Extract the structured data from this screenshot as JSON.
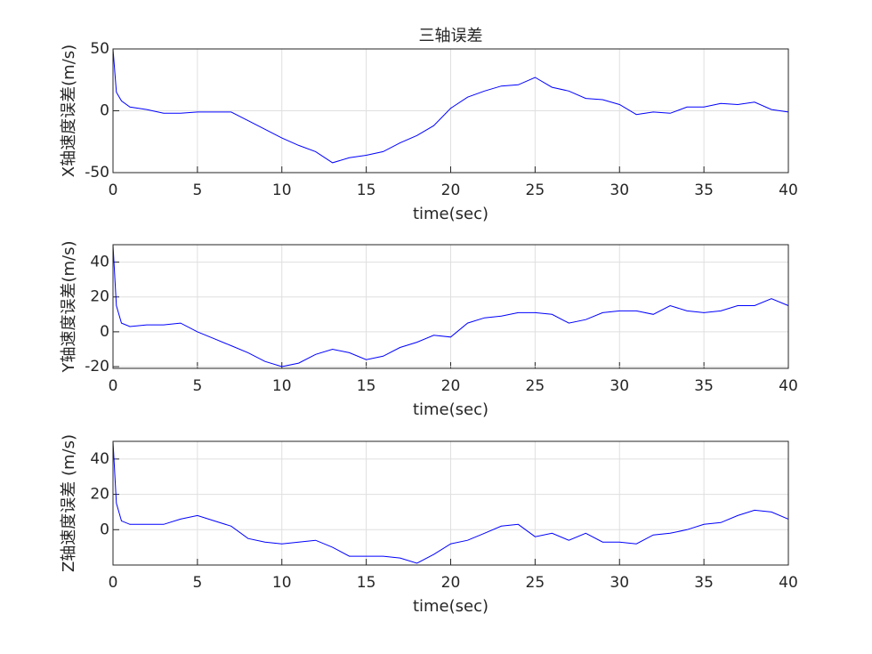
{
  "chart_data": [
    {
      "type": "line",
      "title": "三轴误差",
      "xlabel": "time(sec)",
      "ylabel": "X轴速度误差(m/s)",
      "x": [
        0,
        0.2,
        0.5,
        1,
        2,
        3,
        4,
        5,
        6,
        7,
        8,
        9,
        10,
        11,
        12,
        13,
        14,
        15,
        16,
        17,
        18,
        19,
        20,
        21,
        22,
        23,
        24,
        25,
        26,
        27,
        28,
        29,
        30,
        31,
        32,
        33,
        34,
        35,
        36,
        37,
        38,
        39,
        40
      ],
      "values": [
        50,
        15,
        8,
        3,
        1,
        -2,
        -2,
        -1,
        -1,
        -1,
        -8,
        -15,
        -22,
        -28,
        -33,
        -42,
        -38,
        -36,
        -33,
        -26,
        -20,
        -12,
        2,
        11,
        16,
        20,
        21,
        27,
        19,
        16,
        10,
        9,
        5,
        -3,
        -1,
        -2,
        3,
        3,
        6,
        5,
        7,
        1,
        -1
      ],
      "color": "#0000ff",
      "xlim": [
        0,
        40
      ],
      "xticks": [
        0,
        5,
        10,
        15,
        20,
        25,
        30,
        35,
        40
      ],
      "ylim": [
        -50,
        50
      ],
      "yticks": [
        -50,
        0,
        50
      ],
      "grid": true
    },
    {
      "type": "line",
      "xlabel": "time(sec)",
      "ylabel": "Y轴速度误差(m/s)",
      "x": [
        0,
        0.2,
        0.5,
        1,
        2,
        3,
        4,
        5,
        6,
        7,
        8,
        9,
        10,
        11,
        12,
        13,
        14,
        15,
        16,
        17,
        18,
        19,
        20,
        21,
        22,
        23,
        24,
        25,
        26,
        27,
        28,
        29,
        30,
        31,
        32,
        33,
        34,
        35,
        36,
        37,
        38,
        39,
        40
      ],
      "values": [
        50,
        15,
        5,
        3,
        4,
        4,
        5,
        0,
        -4,
        -8,
        -12,
        -17,
        -20,
        -18,
        -13,
        -10,
        -12,
        -16,
        -14,
        -9,
        -6,
        -2,
        -3,
        5,
        8,
        9,
        11,
        11,
        10,
        5,
        7,
        11,
        12,
        12,
        10,
        15,
        12,
        11,
        12,
        15,
        15,
        19,
        15
      ],
      "color": "#0000ff",
      "xlim": [
        0,
        40
      ],
      "xticks": [
        0,
        5,
        10,
        15,
        20,
        25,
        30,
        35,
        40
      ],
      "ylim": [
        -21,
        50
      ],
      "yticks": [
        -20,
        0,
        20,
        40
      ],
      "grid": true
    },
    {
      "type": "line",
      "xlabel": "time(sec)",
      "ylabel": "Z轴速度误差 (m/s)",
      "x": [
        0,
        0.2,
        0.5,
        1,
        2,
        3,
        4,
        5,
        6,
        7,
        8,
        9,
        10,
        11,
        12,
        13,
        14,
        15,
        16,
        17,
        18,
        19,
        20,
        21,
        22,
        23,
        24,
        25,
        26,
        27,
        28,
        29,
        30,
        31,
        32,
        33,
        34,
        35,
        36,
        37,
        38,
        39,
        40
      ],
      "values": [
        50,
        15,
        5,
        3,
        3,
        3,
        6,
        8,
        5,
        2,
        -5,
        -7,
        -8,
        -7,
        -6,
        -10,
        -15,
        -15,
        -15,
        -16,
        -19,
        -14,
        -8,
        -6,
        -2,
        2,
        3,
        -4,
        -2,
        -6,
        -2,
        -7,
        -7,
        -8,
        -3,
        -2,
        0,
        3,
        4,
        8,
        11,
        10,
        6
      ],
      "color": "#0000ff",
      "xlim": [
        0,
        40
      ],
      "xticks": [
        0,
        5,
        10,
        15,
        20,
        25,
        30,
        35,
        40
      ],
      "ylim": [
        -20,
        50
      ],
      "yticks": [
        0,
        20,
        40
      ],
      "grid": true
    }
  ]
}
